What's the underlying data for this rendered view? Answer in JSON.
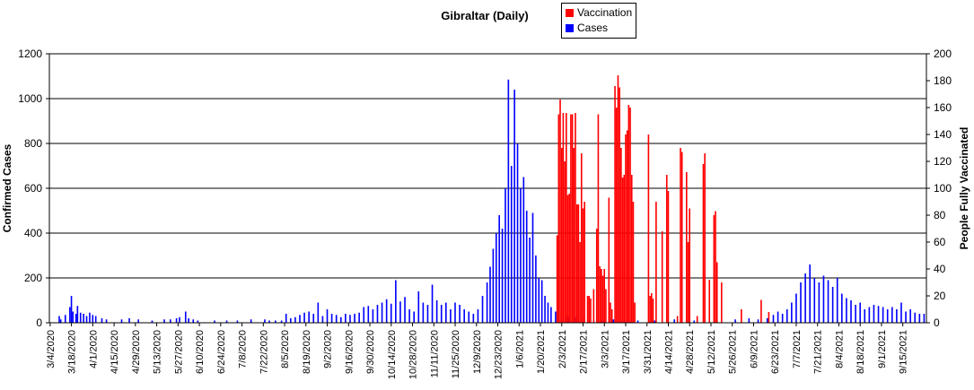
{
  "chart_data": {
    "type": "bar",
    "title": "Gibraltar (Daily)",
    "y_left_label": "Confirmed Cases",
    "y_right_label": "People Fully Vaccinated",
    "y_left_lim": [
      0,
      1200
    ],
    "y_left_ticks": [
      0,
      200,
      400,
      600,
      800,
      1000,
      1200
    ],
    "y_right_lim": [
      0,
      200
    ],
    "y_right_ticks": [
      0,
      20,
      40,
      60,
      80,
      100,
      120,
      140,
      160,
      180,
      200
    ],
    "grid": "horizontal",
    "legend_position": "top-right",
    "x_start": "3/4/2020",
    "x_end": "9/30/2021",
    "x_tick_labels": [
      "3/4/2020",
      "3/18/2020",
      "4/1/2020",
      "4/15/2020",
      "4/29/2020",
      "5/13/2020",
      "5/27/2020",
      "6/10/2020",
      "6/24/2020",
      "7/8/2020",
      "7/22/2020",
      "8/5/2020",
      "8/19/2020",
      "9/2/2020",
      "9/16/2020",
      "9/30/2020",
      "10/14/2020",
      "10/28/2020",
      "11/11/2020",
      "11/25/2020",
      "12/9/2020",
      "12/23/2020",
      "1/6/2021",
      "1/20/2021",
      "2/3/2021",
      "2/17/2021",
      "3/3/2021",
      "3/17/2021",
      "3/31/2021",
      "4/14/2021",
      "4/28/2021",
      "5/12/2021",
      "5/26/2021",
      "6/9/2021",
      "6/23/2021",
      "7/7/2021",
      "7/21/2021",
      "8/4/2021",
      "8/18/2021",
      "9/1/2021",
      "9/15/2021"
    ],
    "series": [
      {
        "name": "Vaccination",
        "axis": "right",
        "color": "#ff0000",
        "points": [
          [
            "1/31/2021",
            65
          ],
          [
            "2/1/2021",
            155
          ],
          [
            "2/2/2021",
            166
          ],
          [
            "2/3/2021",
            130
          ],
          [
            "2/4/2021",
            156
          ],
          [
            "2/5/2021",
            120
          ],
          [
            "2/6/2021",
            156
          ],
          [
            "2/7/2021",
            95
          ],
          [
            "2/8/2021",
            96
          ],
          [
            "2/9/2021",
            155
          ],
          [
            "2/10/2021",
            155
          ],
          [
            "2/11/2021",
            130
          ],
          [
            "2/12/2021",
            156
          ],
          [
            "2/13/2021",
            88
          ],
          [
            "2/14/2021",
            88
          ],
          [
            "2/15/2021",
            60
          ],
          [
            "2/16/2021",
            126
          ],
          [
            "2/17/2021",
            85
          ],
          [
            "2/18/2021",
            90
          ],
          [
            "2/20/2021",
            20
          ],
          [
            "2/21/2021",
            20
          ],
          [
            "2/22/2021",
            18
          ],
          [
            "2/24/2021",
            25
          ],
          [
            "2/26/2021",
            70
          ],
          [
            "2/27/2021",
            155
          ],
          [
            "2/28/2021",
            42
          ],
          [
            "3/1/2021",
            40
          ],
          [
            "3/2/2021",
            35
          ],
          [
            "3/3/2021",
            40
          ],
          [
            "3/4/2021",
            25
          ],
          [
            "3/6/2021",
            93
          ],
          [
            "3/7/2021",
            15
          ],
          [
            "3/8/2021",
            10
          ],
          [
            "3/10/2021",
            176
          ],
          [
            "3/11/2021",
            160
          ],
          [
            "3/12/2021",
            184
          ],
          [
            "3/13/2021",
            175
          ],
          [
            "3/14/2021",
            130
          ],
          [
            "3/15/2021",
            108
          ],
          [
            "3/16/2021",
            110
          ],
          [
            "3/17/2021",
            140
          ],
          [
            "3/18/2021",
            143
          ],
          [
            "3/19/2021",
            162
          ],
          [
            "3/20/2021",
            160
          ],
          [
            "3/21/2021",
            110
          ],
          [
            "3/22/2021",
            90
          ],
          [
            "3/23/2021",
            15
          ],
          [
            "4/1/2021",
            140
          ],
          [
            "4/2/2021",
            20
          ],
          [
            "4/3/2021",
            22
          ],
          [
            "4/4/2021",
            18
          ],
          [
            "4/6/2021",
            90
          ],
          [
            "4/10/2021",
            68
          ],
          [
            "4/13/2021",
            110
          ],
          [
            "4/14/2021",
            98
          ],
          [
            "4/20/2021",
            5
          ],
          [
            "4/22/2021",
            130
          ],
          [
            "4/23/2021",
            127
          ],
          [
            "4/26/2021",
            112
          ],
          [
            "4/27/2021",
            60
          ],
          [
            "4/28/2021",
            85
          ],
          [
            "5/3/2021",
            5
          ],
          [
            "5/7/2021",
            118
          ],
          [
            "5/8/2021",
            126
          ],
          [
            "5/11/2021",
            32
          ],
          [
            "5/14/2021",
            80
          ],
          [
            "5/15/2021",
            83
          ],
          [
            "5/16/2021",
            45
          ],
          [
            "5/19/2021",
            30
          ],
          [
            "6/1/2021",
            10
          ],
          [
            "6/14/2021",
            17
          ],
          [
            "6/19/2021",
            8
          ]
        ]
      },
      {
        "name": "Cases",
        "axis": "left",
        "color": "#0000ff",
        "points": [
          [
            "3/10/2020",
            30
          ],
          [
            "3/11/2020",
            15
          ],
          [
            "3/14/2020",
            35
          ],
          [
            "3/17/2020",
            70
          ],
          [
            "3/18/2020",
            120
          ],
          [
            "3/19/2020",
            50
          ],
          [
            "3/21/2020",
            40
          ],
          [
            "3/22/2020",
            75
          ],
          [
            "3/24/2020",
            45
          ],
          [
            "3/26/2020",
            40
          ],
          [
            "3/28/2020",
            30
          ],
          [
            "3/30/2020",
            45
          ],
          [
            "4/1/2020",
            35
          ],
          [
            "4/3/2020",
            30
          ],
          [
            "4/7/2020",
            20
          ],
          [
            "4/10/2020",
            15
          ],
          [
            "4/20/2020",
            15
          ],
          [
            "4/25/2020",
            20
          ],
          [
            "5/1/2020",
            15
          ],
          [
            "5/10/2020",
            10
          ],
          [
            "5/18/2020",
            15
          ],
          [
            "5/22/2020",
            15
          ],
          [
            "5/26/2020",
            20
          ],
          [
            "5/28/2020",
            25
          ],
          [
            "6/1/2020",
            50
          ],
          [
            "6/3/2020",
            20
          ],
          [
            "6/6/2020",
            15
          ],
          [
            "6/9/2020",
            10
          ],
          [
            "6/20/2020",
            10
          ],
          [
            "6/28/2020",
            10
          ],
          [
            "7/5/2020",
            10
          ],
          [
            "7/14/2020",
            15
          ],
          [
            "7/23/2020",
            15
          ],
          [
            "7/26/2020",
            10
          ],
          [
            "7/30/2020",
            10
          ],
          [
            "8/3/2020",
            10
          ],
          [
            "8/6/2020",
            40
          ],
          [
            "8/9/2020",
            20
          ],
          [
            "8/12/2020",
            25
          ],
          [
            "8/15/2020",
            35
          ],
          [
            "8/18/2020",
            45
          ],
          [
            "8/21/2020",
            50
          ],
          [
            "8/24/2020",
            40
          ],
          [
            "8/27/2020",
            90
          ],
          [
            "8/30/2020",
            30
          ],
          [
            "9/2/2020",
            60
          ],
          [
            "9/5/2020",
            40
          ],
          [
            "9/8/2020",
            35
          ],
          [
            "9/11/2020",
            25
          ],
          [
            "9/14/2020",
            40
          ],
          [
            "9/17/2020",
            35
          ],
          [
            "9/20/2020",
            40
          ],
          [
            "9/23/2020",
            45
          ],
          [
            "9/26/2020",
            70
          ],
          [
            "9/29/2020",
            75
          ],
          [
            "10/2/2020",
            60
          ],
          [
            "10/5/2020",
            80
          ],
          [
            "10/8/2020",
            90
          ],
          [
            "10/11/2020",
            105
          ],
          [
            "10/14/2020",
            85
          ],
          [
            "10/17/2020",
            190
          ],
          [
            "10/20/2020",
            95
          ],
          [
            "10/23/2020",
            115
          ],
          [
            "10/26/2020",
            60
          ],
          [
            "10/29/2020",
            50
          ],
          [
            "11/1/2020",
            140
          ],
          [
            "11/4/2020",
            90
          ],
          [
            "11/7/2020",
            80
          ],
          [
            "11/10/2020",
            170
          ],
          [
            "11/13/2020",
            100
          ],
          [
            "11/16/2020",
            80
          ],
          [
            "11/19/2020",
            90
          ],
          [
            "11/22/2020",
            60
          ],
          [
            "11/25/2020",
            90
          ],
          [
            "11/28/2020",
            80
          ],
          [
            "12/1/2020",
            60
          ],
          [
            "12/4/2020",
            50
          ],
          [
            "12/7/2020",
            40
          ],
          [
            "12/10/2020",
            60
          ],
          [
            "12/13/2020",
            120
          ],
          [
            "12/16/2020",
            180
          ],
          [
            "12/18/2020",
            250
          ],
          [
            "12/20/2020",
            330
          ],
          [
            "12/22/2020",
            400
          ],
          [
            "12/24/2020",
            480
          ],
          [
            "12/26/2020",
            420
          ],
          [
            "12/28/2020",
            600
          ],
          [
            "12/30/2020",
            1085
          ],
          [
            "1/1/2021",
            700
          ],
          [
            "1/3/2021",
            1040
          ],
          [
            "1/5/2021",
            800
          ],
          [
            "1/7/2021",
            600
          ],
          [
            "1/9/2021",
            650
          ],
          [
            "1/11/2021",
            500
          ],
          [
            "1/13/2021",
            380
          ],
          [
            "1/15/2021",
            490
          ],
          [
            "1/17/2021",
            300
          ],
          [
            "1/19/2021",
            200
          ],
          [
            "1/21/2021",
            190
          ],
          [
            "1/23/2021",
            120
          ],
          [
            "1/25/2021",
            90
          ],
          [
            "1/27/2021",
            70
          ],
          [
            "1/30/2021",
            50
          ],
          [
            "2/3/2021",
            40
          ],
          [
            "2/7/2021",
            30
          ],
          [
            "2/12/2021",
            25
          ],
          [
            "2/18/2021",
            20
          ],
          [
            "2/24/2021",
            15
          ],
          [
            "3/2/2021",
            10
          ],
          [
            "3/9/2021",
            15
          ],
          [
            "3/16/2021",
            10
          ],
          [
            "3/25/2021",
            10
          ],
          [
            "4/5/2021",
            10
          ],
          [
            "4/18/2021",
            15
          ],
          [
            "5/1/2021",
            10
          ],
          [
            "5/16/2021",
            15
          ],
          [
            "5/28/2021",
            15
          ],
          [
            "6/6/2021",
            20
          ],
          [
            "6/12/2021",
            15
          ],
          [
            "6/18/2021",
            20
          ],
          [
            "6/22/2021",
            35
          ],
          [
            "6/25/2021",
            50
          ],
          [
            "6/28/2021",
            40
          ],
          [
            "7/1/2021",
            60
          ],
          [
            "7/4/2021",
            90
          ],
          [
            "7/7/2021",
            130
          ],
          [
            "7/10/2021",
            180
          ],
          [
            "7/13/2021",
            220
          ],
          [
            "7/16/2021",
            260
          ],
          [
            "7/19/2021",
            200
          ],
          [
            "7/22/2021",
            180
          ],
          [
            "7/25/2021",
            210
          ],
          [
            "7/28/2021",
            190
          ],
          [
            "7/31/2021",
            160
          ],
          [
            "8/3/2021",
            200
          ],
          [
            "8/6/2021",
            130
          ],
          [
            "8/9/2021",
            110
          ],
          [
            "8/12/2021",
            100
          ],
          [
            "8/15/2021",
            80
          ],
          [
            "8/18/2021",
            90
          ],
          [
            "8/21/2021",
            60
          ],
          [
            "8/24/2021",
            70
          ],
          [
            "8/27/2021",
            80
          ],
          [
            "8/30/2021",
            75
          ],
          [
            "9/2/2021",
            70
          ],
          [
            "9/5/2021",
            60
          ],
          [
            "9/8/2021",
            70
          ],
          [
            "9/11/2021",
            60
          ],
          [
            "9/14/2021",
            90
          ],
          [
            "9/17/2021",
            50
          ],
          [
            "9/20/2021",
            60
          ],
          [
            "9/23/2021",
            45
          ],
          [
            "9/26/2021",
            40
          ],
          [
            "9/29/2021",
            40
          ]
        ]
      }
    ]
  }
}
